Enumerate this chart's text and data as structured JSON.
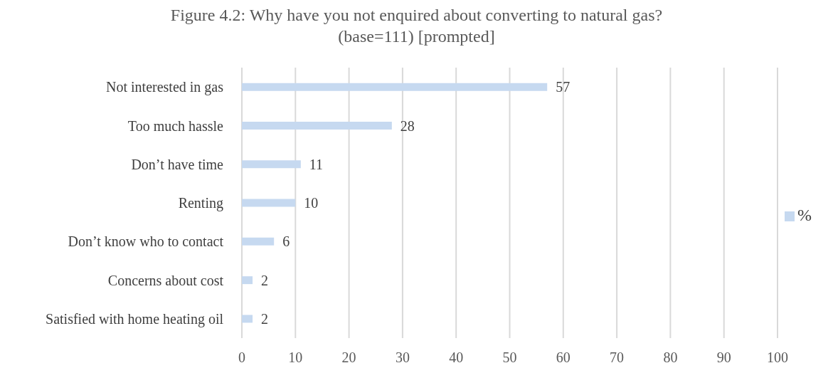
{
  "chart_data": {
    "type": "bar",
    "orientation": "horizontal",
    "title": "Figure 4.2: Why have you not enquired about converting to natural gas?\n(base=111) [prompted]",
    "categories": [
      "Not interested in gas",
      "Too much hassle",
      "Don’t have time",
      "Renting",
      "Don’t know who to contact",
      "Concerns about cost",
      "Satisfied with home heating oil"
    ],
    "series": [
      {
        "name": "%",
        "color": "#c6d9f0",
        "values": [
          57,
          28,
          11,
          10,
          6,
          2,
          2
        ]
      }
    ],
    "xlim": [
      0,
      100
    ],
    "xticks": [
      0,
      10,
      20,
      30,
      40,
      50,
      60,
      70,
      80,
      90,
      100
    ],
    "grid": "x",
    "legend": "right",
    "data_labels": true
  }
}
